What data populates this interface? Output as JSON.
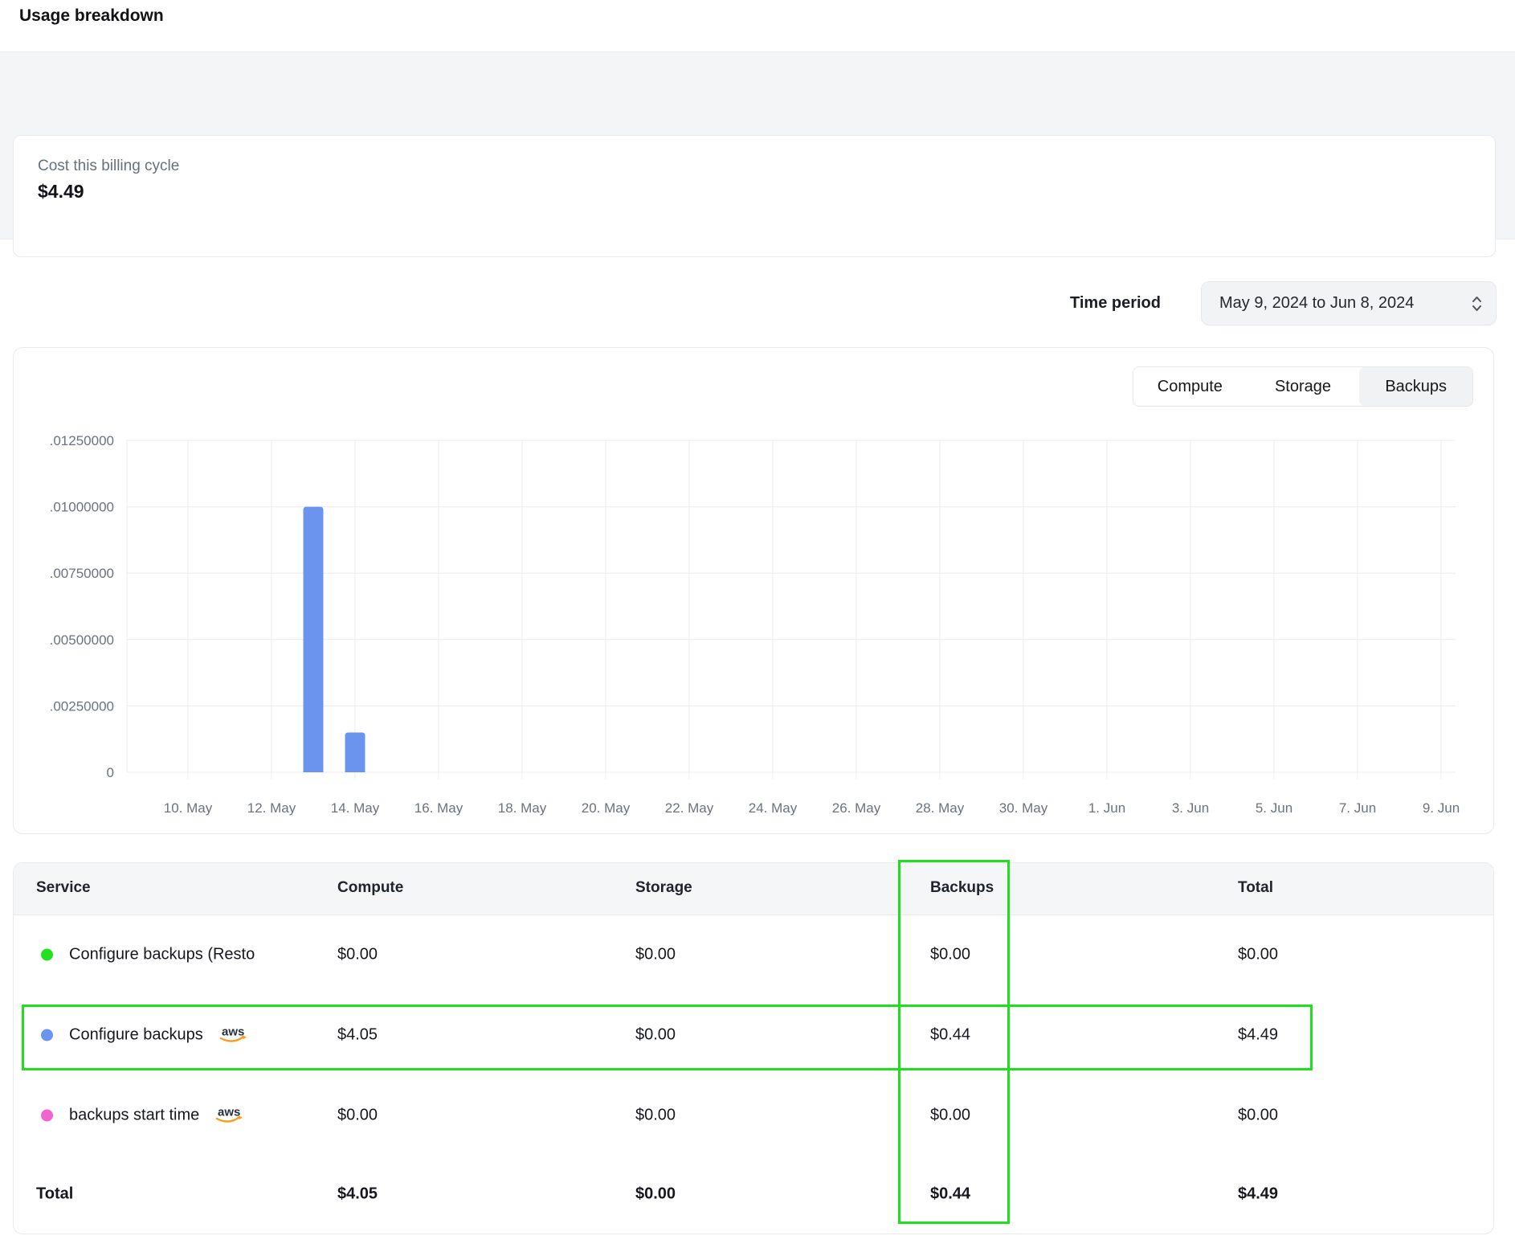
{
  "page": {
    "title": "Usage breakdown"
  },
  "billing_summary": {
    "label": "Cost this billing cycle",
    "amount": "$4.49"
  },
  "time_period": {
    "label": "Time period",
    "value": "May 9, 2024 to Jun 8, 2024"
  },
  "chart": {
    "tabs": [
      {
        "label": "Compute",
        "active": false
      },
      {
        "label": "Storage",
        "active": false
      },
      {
        "label": "Backups",
        "active": true
      }
    ]
  },
  "chart_data": {
    "type": "bar",
    "title": "",
    "xlabel": "",
    "ylabel": "",
    "y_ticks": [
      ".01250000",
      ".01000000",
      ".00750000",
      ".00500000",
      ".00250000",
      "0"
    ],
    "y_max": 0.0125,
    "x_labels": [
      "10. May",
      "12. May",
      "14. May",
      "16. May",
      "18. May",
      "20. May",
      "22. May",
      "24. May",
      "26. May",
      "28. May",
      "30. May",
      "1. Jun",
      "3. Jun",
      "5. Jun",
      "7. Jun",
      "9. Jun"
    ],
    "bars": [
      {
        "date": "13. May",
        "value": 0.01
      },
      {
        "date": "14. May",
        "value": 0.0015
      }
    ],
    "bar_color": "#6b94ee",
    "grid": true,
    "legend": "none"
  },
  "table": {
    "columns": [
      "Service",
      "Compute",
      "Storage",
      "Backups",
      "Total"
    ],
    "rows": [
      {
        "service": "Configure backups (Resto",
        "dot_color": "#21e121",
        "aws": false,
        "compute": "$0.00",
        "storage": "$0.00",
        "backups": "$0.00",
        "total": "$0.00"
      },
      {
        "service": "Configure backups",
        "dot_color": "#6b94ee",
        "aws": true,
        "compute": "$4.05",
        "storage": "$0.00",
        "backups": "$0.44",
        "total": "$4.49",
        "highlighted": true
      },
      {
        "service": "backups start time",
        "dot_color": "#f163cf",
        "aws": true,
        "compute": "$0.00",
        "storage": "$0.00",
        "backups": "$0.00",
        "total": "$0.00"
      }
    ],
    "total_row": {
      "label": "Total",
      "compute": "$4.05",
      "storage": "$0.00",
      "backups": "$0.44",
      "total": "$4.49"
    }
  },
  "aws_label": "aws",
  "annotations": {
    "color": "#1ee01e",
    "highlight_column": "Backups",
    "highlight_row": "Configure backups"
  },
  "colors": {
    "bar": "#6b94ee",
    "tab_active_bg": "#f1f2f4",
    "table_header_bg": "#f5f6f8",
    "band_bg": "#f4f5f7",
    "border": "#e9eaec",
    "grid_line": "#ececee"
  }
}
